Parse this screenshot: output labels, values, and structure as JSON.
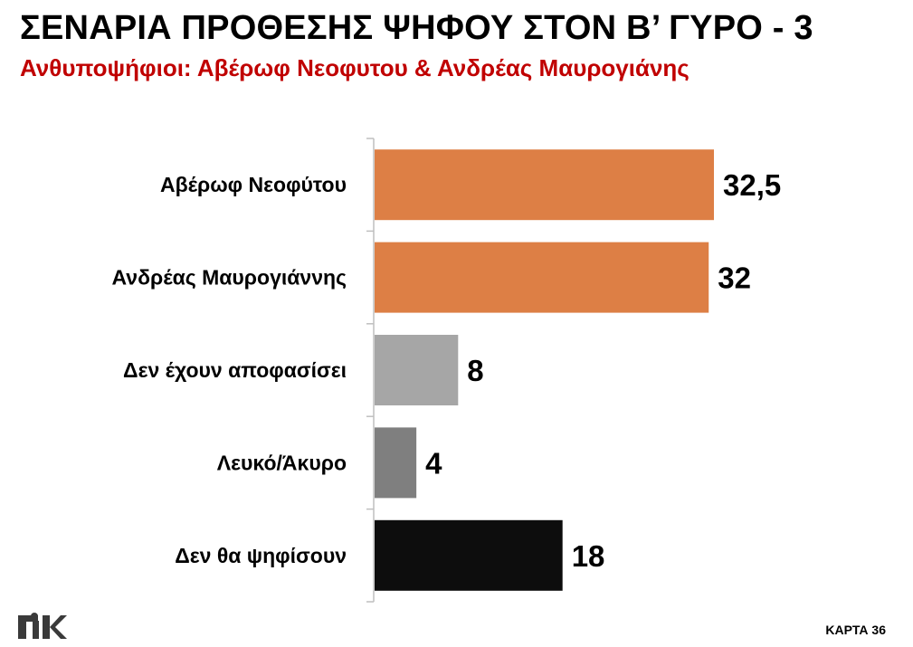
{
  "header": {
    "title": "ΣΕΝΑΡΙΑ ΠΡΟΘΕΣΗΣ ΨΗΦΟΥ ΣΤΟΝ Β’ ΓΥΡΟ - 3",
    "subtitle": "Ανθυποψήφιοι: Αβέρωφ Νεοφυτου & Ανδρέας Μαυρογιάνης"
  },
  "footer": {
    "logo_text": "RIK",
    "page_code": "ΚΑΡΤΑ 36"
  },
  "chart_data": {
    "type": "bar",
    "orientation": "horizontal",
    "categories": [
      "Αβέρωφ Νεοφύτου",
      "Ανδρέας Μαυρογιάννης",
      "Δεν έχουν αποφασίσει",
      "Λευκό/Άκυρο",
      "Δεν θα ψηφίσουν"
    ],
    "values": [
      32.5,
      32,
      8,
      4,
      18
    ],
    "value_labels": [
      "32,5",
      "32",
      "8",
      "4",
      "18"
    ],
    "colors": [
      "#dd7f45",
      "#dd7f45",
      "#a6a6a6",
      "#7f7f7f",
      "#0d0d0d"
    ],
    "xlim": [
      0,
      35
    ],
    "grid": false,
    "legend": false
  }
}
